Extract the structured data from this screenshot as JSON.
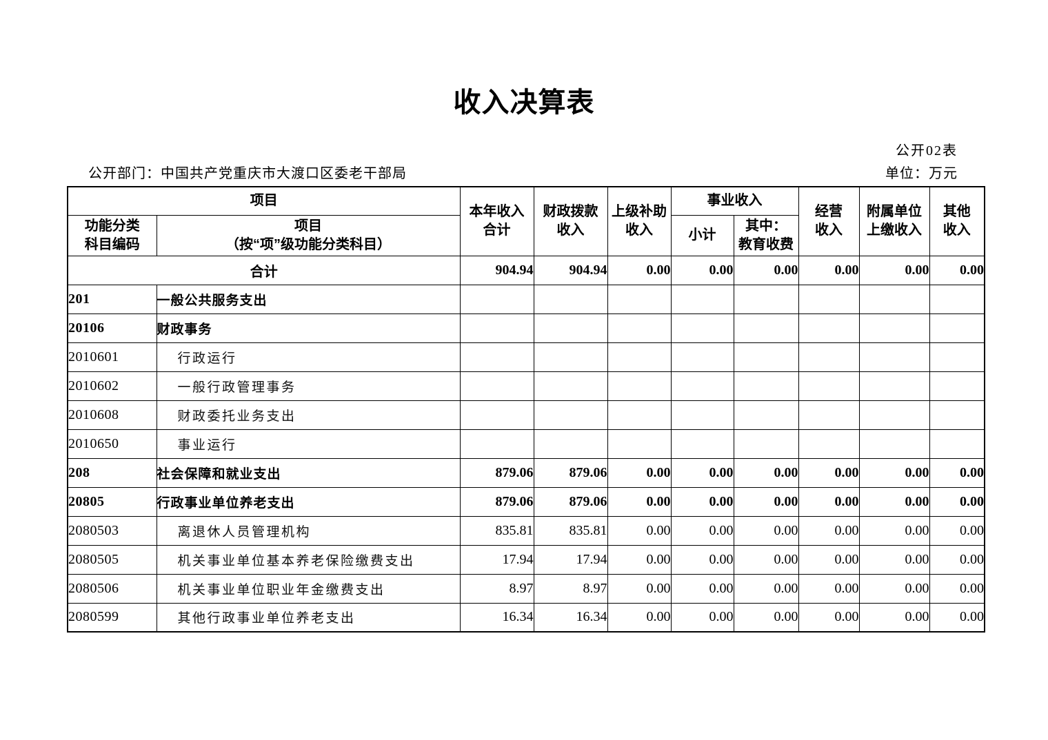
{
  "doc": {
    "title": "收入决算表",
    "table_code": "公开02表",
    "department": "公开部门：中国共产党重庆市大渡口区委老干部局",
    "unit": "单位：万元"
  },
  "table": {
    "header": {
      "project": "项目",
      "code": "功能分类\n科目编码",
      "name": "项目\n（按“项”级功能分类科目）",
      "total": "本年收入\n合计",
      "fiscal": "财政拨款\n收入",
      "superior": "上级补助\n收入",
      "business": "事业收入",
      "subtotal": "小计",
      "education": "其中：\n教育收费",
      "operating": "经营\n收入",
      "affiliated": "附属单位\n上缴收入",
      "other": "其他\n收入"
    },
    "rows": [
      {
        "code": "",
        "name": "合计",
        "bold": true,
        "merged": true,
        "indent": 0,
        "values": [
          "904.94",
          "904.94",
          "0.00",
          "0.00",
          "0.00",
          "0.00",
          "0.00",
          "0.00"
        ]
      },
      {
        "code": "201",
        "name": "一般公共服务支出",
        "bold": true,
        "merged": false,
        "indent": 1,
        "values": [
          "",
          "",
          "",
          "",
          "",
          "",
          "",
          ""
        ]
      },
      {
        "code": "20106",
        "name": "财政事务",
        "bold": true,
        "merged": false,
        "indent": 1,
        "values": [
          "",
          "",
          "",
          "",
          "",
          "",
          "",
          ""
        ]
      },
      {
        "code": "2010601",
        "name": "行政运行",
        "bold": false,
        "merged": false,
        "indent": 2,
        "values": [
          "",
          "",
          "",
          "",
          "",
          "",
          "",
          ""
        ]
      },
      {
        "code": "2010602",
        "name": "一般行政管理事务",
        "bold": false,
        "merged": false,
        "indent": 2,
        "values": [
          "",
          "",
          "",
          "",
          "",
          "",
          "",
          ""
        ]
      },
      {
        "code": "2010608",
        "name": "财政委托业务支出",
        "bold": false,
        "merged": false,
        "indent": 2,
        "values": [
          "",
          "",
          "",
          "",
          "",
          "",
          "",
          ""
        ]
      },
      {
        "code": "2010650",
        "name": "事业运行",
        "bold": false,
        "merged": false,
        "indent": 2,
        "values": [
          "",
          "",
          "",
          "",
          "",
          "",
          "",
          ""
        ]
      },
      {
        "code": "208",
        "name": "社会保障和就业支出",
        "bold": true,
        "merged": false,
        "indent": 1,
        "values": [
          "879.06",
          "879.06",
          "0.00",
          "0.00",
          "0.00",
          "0.00",
          "0.00",
          "0.00"
        ]
      },
      {
        "code": "20805",
        "name": "行政事业单位养老支出",
        "bold": true,
        "merged": false,
        "indent": 1,
        "values": [
          "879.06",
          "879.06",
          "0.00",
          "0.00",
          "0.00",
          "0.00",
          "0.00",
          "0.00"
        ]
      },
      {
        "code": "2080503",
        "name": "离退休人员管理机构",
        "bold": false,
        "merged": false,
        "indent": 2,
        "values": [
          "835.81",
          "835.81",
          "0.00",
          "0.00",
          "0.00",
          "0.00",
          "0.00",
          "0.00"
        ]
      },
      {
        "code": "2080505",
        "name": "机关事业单位基本养老保险缴费支出",
        "bold": false,
        "merged": false,
        "indent": 2,
        "values": [
          "17.94",
          "17.94",
          "0.00",
          "0.00",
          "0.00",
          "0.00",
          "0.00",
          "0.00"
        ]
      },
      {
        "code": "2080506",
        "name": "机关事业单位职业年金缴费支出",
        "bold": false,
        "merged": false,
        "indent": 2,
        "values": [
          "8.97",
          "8.97",
          "0.00",
          "0.00",
          "0.00",
          "0.00",
          "0.00",
          "0.00"
        ]
      },
      {
        "code": "2080599",
        "name": "其他行政事业单位养老支出",
        "bold": false,
        "merged": false,
        "indent": 2,
        "values": [
          "16.34",
          "16.34",
          "0.00",
          "0.00",
          "0.00",
          "0.00",
          "0.00",
          "0.00"
        ]
      }
    ]
  }
}
